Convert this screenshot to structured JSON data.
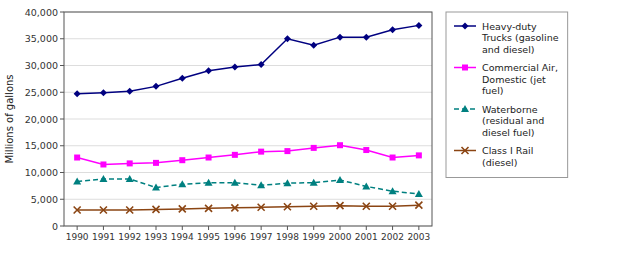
{
  "chart_data": {
    "type": "line",
    "x": [
      1990,
      1991,
      1992,
      1993,
      1994,
      1995,
      1996,
      1997,
      1998,
      1999,
      2000,
      2001,
      2002,
      2003
    ],
    "series": [
      {
        "name": "Heavy-duty\nTrucks (gasoline\nand diesel)",
        "color": "#000080",
        "marker": "diamond",
        "line_style": "solid",
        "values": [
          24700,
          24900,
          25200,
          26100,
          27600,
          29000,
          29700,
          30200,
          35000,
          33800,
          35300,
          35300,
          36700,
          37500
        ]
      },
      {
        "name": "Commercial Air,\nDomestic (jet\nfuel)",
        "color": "#FF00FF",
        "marker": "square",
        "line_style": "solid",
        "values": [
          12800,
          11500,
          11700,
          11800,
          12300,
          12800,
          13300,
          13900,
          14000,
          14600,
          15100,
          14200,
          12800,
          13200
        ]
      },
      {
        "name": "Waterborne\n(residual and\ndiesel fuel)",
        "color": "#008080",
        "marker": "triangle",
        "line_style": "dashed",
        "values": [
          8300,
          8800,
          8800,
          7200,
          7800,
          8100,
          8100,
          7600,
          8000,
          8100,
          8600,
          7400,
          6500,
          6000
        ]
      },
      {
        "name": "Class I Rail\n(diesel)",
        "color": "#8B4513",
        "marker": "x",
        "line_style": "solid",
        "values": [
          3000,
          3000,
          3000,
          3100,
          3200,
          3300,
          3400,
          3500,
          3600,
          3700,
          3800,
          3700,
          3700,
          3900
        ]
      }
    ],
    "y_label": "Millions of gallons",
    "xlim": [
      1989.5,
      2003.5
    ],
    "xticks": [
      1990,
      1991,
      1992,
      1993,
      1994,
      1995,
      1996,
      1997,
      1998,
      1999,
      2000,
      2001,
      2002,
      2003
    ],
    "ylim": [
      0,
      40000
    ],
    "yticks": [
      0,
      {
        "value": 5000,
        "label": "5,000"
      },
      {
        "value": 10000,
        "label": "10,000"
      },
      {
        "value": 15000,
        "label": "15,000"
      },
      {
        "value": 20000,
        "label": "20,000"
      },
      {
        "value": 25000,
        "label": "25,000"
      },
      {
        "value": 30000,
        "label": "30,000"
      },
      {
        "value": 35000,
        "label": "35,000"
      },
      {
        "value": 40000,
        "label": "40,000"
      }
    ],
    "grid": true,
    "legend": "right"
  }
}
